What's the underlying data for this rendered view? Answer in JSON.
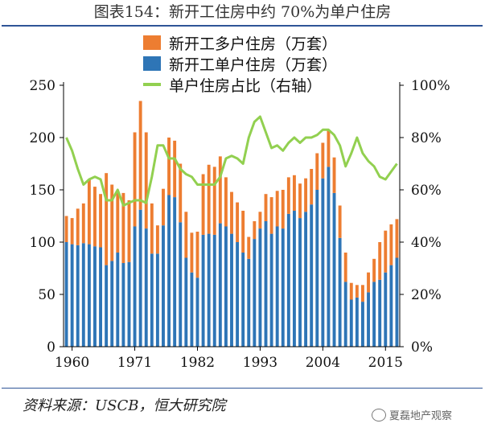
{
  "title": "图表154：新开工住房中约 70%为单户住房",
  "source": "资料来源：USCB，恒大研究院",
  "watermark": "夏磊地产观察",
  "colors": {
    "multi": "#ed7d31",
    "single": "#2e75b6",
    "ratio": "#92d050",
    "axis": "#000000"
  },
  "chart_data": {
    "type": "bar",
    "stacked": true,
    "title": "图表154：新开工住房中约 70%为单户住房",
    "x": [
      1959,
      1960,
      1961,
      1962,
      1963,
      1964,
      1965,
      1966,
      1967,
      1968,
      1969,
      1970,
      1971,
      1972,
      1973,
      1974,
      1975,
      1976,
      1977,
      1978,
      1979,
      1980,
      1981,
      1982,
      1983,
      1984,
      1985,
      1986,
      1987,
      1988,
      1989,
      1990,
      1991,
      1992,
      1993,
      1994,
      1995,
      1996,
      1997,
      1998,
      1999,
      2000,
      2001,
      2002,
      2003,
      2004,
      2005,
      2006,
      2007,
      2008,
      2009,
      2010,
      2011,
      2012,
      2013,
      2014,
      2015,
      2016,
      2017
    ],
    "x_tick_labels": [
      "1960",
      "1971",
      "1982",
      "1993",
      "2004",
      "2015"
    ],
    "series": [
      {
        "name": "新开工单户住房（万套）",
        "axis": "left",
        "values": [
          100,
          98,
          97,
          99,
          98,
          96,
          95,
          78,
          82,
          90,
          80,
          81,
          115,
          131,
          113,
          89,
          89,
          116,
          145,
          143,
          119,
          85,
          71,
          66,
          107,
          108,
          107,
          118,
          115,
          108,
          100,
          90,
          84,
          103,
          113,
          120,
          108,
          115,
          113,
          127,
          130,
          123,
          129,
          136,
          150,
          161,
          172,
          147,
          104,
          62,
          45,
          47,
          43,
          52,
          62,
          64,
          71,
          78,
          85
        ]
      },
      {
        "name": "新开工多户住房（万套）",
        "axis": "left",
        "values": [
          25,
          25,
          35,
          38,
          62,
          57,
          51,
          88,
          73,
          57,
          67,
          59,
          90,
          104,
          92,
          48,
          27,
          35,
          55,
          54,
          56,
          44,
          38,
          44,
          58,
          66,
          65,
          64,
          47,
          40,
          38,
          40,
          21,
          17,
          16,
          26,
          35,
          34,
          37,
          35,
          34,
          33,
          32,
          34,
          35,
          34,
          35,
          34,
          31,
          28,
          16,
          12,
          16,
          19,
          22,
          36,
          40,
          39,
          37
        ]
      },
      {
        "name": "单户住房占比（右轴）",
        "axis": "right",
        "type": "line",
        "values": [
          80,
          75,
          68,
          62,
          64,
          65,
          64,
          56,
          56,
          60,
          54,
          55,
          56,
          56,
          55,
          65,
          77,
          77,
          72,
          72,
          68,
          66,
          65,
          62,
          62,
          62,
          62,
          65,
          72,
          73,
          72,
          70,
          80,
          86,
          88,
          82,
          76,
          77,
          75,
          78,
          80,
          78,
          80,
          80,
          81,
          83,
          83,
          81,
          77,
          69,
          74,
          80,
          74,
          71,
          69,
          65,
          64,
          67,
          70
        ]
      }
    ],
    "y_left": {
      "label": "",
      "ylim": [
        0,
        250
      ],
      "ticks": [
        0,
        50,
        100,
        150,
        200,
        250
      ]
    },
    "y_right": {
      "label": "",
      "ylim": [
        0,
        100
      ],
      "ticks": [
        "0%",
        "20%",
        "40%",
        "60%",
        "80%",
        "100%"
      ]
    },
    "legend": {
      "position": "top-center",
      "entries": [
        "新开工多户住房（万套）",
        "新开工单户住房（万套）",
        "单户住房占比（右轴）"
      ]
    },
    "grid": false
  }
}
